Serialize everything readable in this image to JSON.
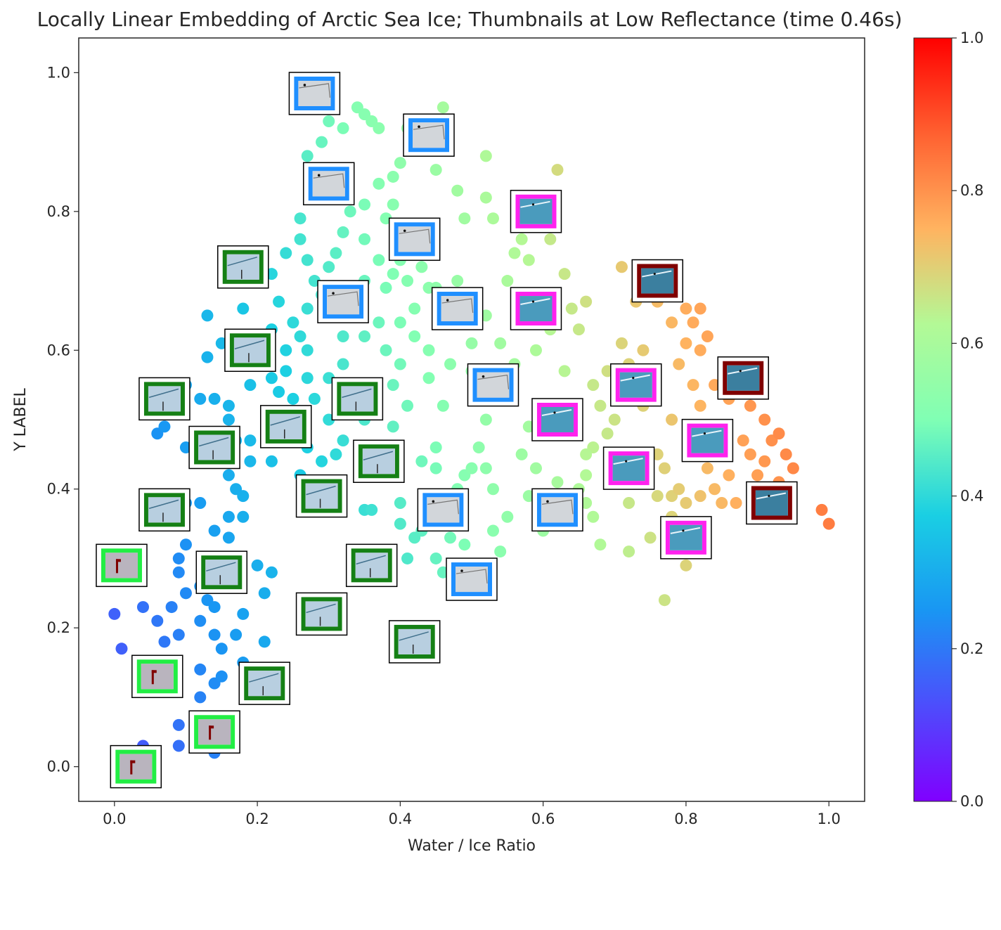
{
  "chart_data": {
    "type": "scatter",
    "title": "Locally Linear Embedding of Arctic Sea Ice; Thumbnails at Low Reflectance (time 0.46s)",
    "xlabel": "Water / Ice Ratio",
    "ylabel": "Y LABEL",
    "xlim": [
      -0.05,
      1.05
    ],
    "ylim": [
      -0.05,
      1.05
    ],
    "xticks": [
      0.0,
      0.2,
      0.4,
      0.6,
      0.8,
      1.0
    ],
    "xtick_labels": [
      "0.0",
      "0.2",
      "0.4",
      "0.6",
      "0.8",
      "1.0"
    ],
    "yticks": [
      0.0,
      0.2,
      0.4,
      0.6,
      0.8,
      1.0
    ],
    "ytick_labels": [
      "0.0",
      "0.2",
      "0.4",
      "0.6",
      "0.8",
      "1.0"
    ],
    "grid": false,
    "colormap": "rainbow",
    "colorbar": {
      "range": [
        0.0,
        1.0
      ],
      "ticks": [
        0.0,
        0.2,
        0.4,
        0.6,
        0.8,
        1.0
      ],
      "tick_labels": [
        "0.0",
        "0.2",
        "0.4",
        "0.6",
        "0.8",
        "1.0"
      ]
    },
    "points": [
      [
        0.03,
        0.0
      ],
      [
        0.04,
        0.03
      ],
      [
        0.09,
        0.06
      ],
      [
        0.09,
        0.03
      ],
      [
        0.14,
        0.02
      ],
      [
        0.14,
        0.05
      ],
      [
        0.12,
        0.14
      ],
      [
        0.12,
        0.1
      ],
      [
        0.14,
        0.12
      ],
      [
        0.15,
        0.13
      ],
      [
        0.19,
        0.1
      ],
      [
        0.21,
        0.11
      ],
      [
        0.0,
        0.22
      ],
      [
        0.01,
        0.17
      ],
      [
        0.05,
        0.15
      ],
      [
        0.07,
        0.18
      ],
      [
        0.09,
        0.19
      ],
      [
        0.04,
        0.23
      ],
      [
        0.06,
        0.21
      ],
      [
        0.08,
        0.23
      ],
      [
        0.12,
        0.21
      ],
      [
        0.14,
        0.19
      ],
      [
        0.15,
        0.17
      ],
      [
        0.17,
        0.19
      ],
      [
        0.18,
        0.22
      ],
      [
        0.18,
        0.15
      ],
      [
        0.21,
        0.18
      ],
      [
        0.1,
        0.25
      ],
      [
        0.12,
        0.26
      ],
      [
        0.13,
        0.24
      ],
      [
        0.14,
        0.23
      ],
      [
        0.15,
        0.27
      ],
      [
        0.17,
        0.26
      ],
      [
        0.2,
        0.29
      ],
      [
        0.21,
        0.25
      ],
      [
        0.22,
        0.28
      ],
      [
        0.09,
        0.28
      ],
      [
        0.09,
        0.3
      ],
      [
        0.1,
        0.32
      ],
      [
        0.14,
        0.34
      ],
      [
        0.16,
        0.33
      ],
      [
        0.18,
        0.36
      ],
      [
        0.17,
        0.4
      ],
      [
        0.18,
        0.39
      ],
      [
        0.16,
        0.36
      ],
      [
        0.1,
        0.38
      ],
      [
        0.12,
        0.38
      ],
      [
        0.16,
        0.42
      ],
      [
        0.19,
        0.44
      ],
      [
        0.12,
        0.48
      ],
      [
        0.16,
        0.5
      ],
      [
        0.17,
        0.47
      ],
      [
        0.19,
        0.47
      ],
      [
        0.14,
        0.53
      ],
      [
        0.16,
        0.52
      ],
      [
        0.19,
        0.55
      ],
      [
        0.2,
        0.58
      ],
      [
        0.06,
        0.48
      ],
      [
        0.07,
        0.49
      ],
      [
        0.1,
        0.46
      ],
      [
        0.13,
        0.59
      ],
      [
        0.15,
        0.61
      ],
      [
        0.18,
        0.62
      ],
      [
        0.18,
        0.66
      ],
      [
        0.13,
        0.65
      ],
      [
        0.1,
        0.55
      ],
      [
        0.12,
        0.53
      ],
      [
        0.22,
        0.44
      ],
      [
        0.26,
        0.42
      ],
      [
        0.27,
        0.46
      ],
      [
        0.23,
        0.51
      ],
      [
        0.25,
        0.53
      ],
      [
        0.27,
        0.56
      ],
      [
        0.27,
        0.6
      ],
      [
        0.28,
        0.53
      ],
      [
        0.3,
        0.56
      ],
      [
        0.32,
        0.58
      ],
      [
        0.33,
        0.52
      ],
      [
        0.35,
        0.5
      ],
      [
        0.36,
        0.54
      ],
      [
        0.39,
        0.55
      ],
      [
        0.39,
        0.49
      ],
      [
        0.41,
        0.52
      ],
      [
        0.4,
        0.58
      ],
      [
        0.38,
        0.6
      ],
      [
        0.35,
        0.62
      ],
      [
        0.31,
        0.45
      ],
      [
        0.35,
        0.44
      ],
      [
        0.35,
        0.37
      ],
      [
        0.36,
        0.37
      ],
      [
        0.4,
        0.38
      ],
      [
        0.4,
        0.35
      ],
      [
        0.41,
        0.3
      ],
      [
        0.43,
        0.34
      ],
      [
        0.45,
        0.3
      ],
      [
        0.46,
        0.28
      ],
      [
        0.47,
        0.33
      ],
      [
        0.45,
        0.46
      ],
      [
        0.45,
        0.43
      ],
      [
        0.48,
        0.4
      ],
      [
        0.49,
        0.42
      ],
      [
        0.5,
        0.43
      ],
      [
        0.51,
        0.46
      ],
      [
        0.52,
        0.43
      ],
      [
        0.53,
        0.4
      ],
      [
        0.53,
        0.34
      ],
      [
        0.54,
        0.31
      ],
      [
        0.49,
        0.32
      ],
      [
        0.52,
        0.5
      ],
      [
        0.53,
        0.55
      ],
      [
        0.5,
        0.57
      ],
      [
        0.46,
        0.52
      ],
      [
        0.44,
        0.56
      ],
      [
        0.42,
        0.62
      ],
      [
        0.44,
        0.6
      ],
      [
        0.47,
        0.58
      ],
      [
        0.3,
        0.65
      ],
      [
        0.32,
        0.62
      ],
      [
        0.34,
        0.66
      ],
      [
        0.37,
        0.64
      ],
      [
        0.4,
        0.64
      ],
      [
        0.42,
        0.66
      ],
      [
        0.26,
        0.62
      ],
      [
        0.24,
        0.6
      ],
      [
        0.22,
        0.56
      ],
      [
        0.22,
        0.63
      ],
      [
        0.23,
        0.67
      ],
      [
        0.22,
        0.71
      ],
      [
        0.24,
        0.74
      ],
      [
        0.26,
        0.76
      ],
      [
        0.27,
        0.73
      ],
      [
        0.28,
        0.7
      ],
      [
        0.3,
        0.72
      ],
      [
        0.31,
        0.74
      ],
      [
        0.32,
        0.77
      ],
      [
        0.35,
        0.76
      ],
      [
        0.37,
        0.73
      ],
      [
        0.39,
        0.71
      ],
      [
        0.4,
        0.73
      ],
      [
        0.41,
        0.7
      ],
      [
        0.43,
        0.72
      ],
      [
        0.44,
        0.69
      ],
      [
        0.47,
        0.66
      ],
      [
        0.48,
        0.7
      ],
      [
        0.26,
        0.79
      ],
      [
        0.28,
        0.82
      ],
      [
        0.31,
        0.84
      ],
      [
        0.33,
        0.8
      ],
      [
        0.35,
        0.81
      ],
      [
        0.37,
        0.84
      ],
      [
        0.39,
        0.81
      ],
      [
        0.38,
        0.79
      ],
      [
        0.27,
        0.88
      ],
      [
        0.29,
        0.9
      ],
      [
        0.3,
        0.93
      ],
      [
        0.32,
        0.92
      ],
      [
        0.34,
        0.95
      ],
      [
        0.35,
        0.94
      ],
      [
        0.36,
        0.93
      ],
      [
        0.37,
        0.92
      ],
      [
        0.39,
        0.85
      ],
      [
        0.4,
        0.87
      ],
      [
        0.41,
        0.92
      ],
      [
        0.43,
        0.89
      ],
      [
        0.45,
        0.86
      ],
      [
        0.46,
        0.95
      ],
      [
        0.48,
        0.83
      ],
      [
        0.49,
        0.79
      ],
      [
        0.52,
        0.88
      ],
      [
        0.56,
        0.74
      ],
      [
        0.57,
        0.76
      ],
      [
        0.58,
        0.73
      ],
      [
        0.55,
        0.7
      ],
      [
        0.6,
        0.66
      ],
      [
        0.61,
        0.76
      ],
      [
        0.63,
        0.71
      ],
      [
        0.65,
        0.63
      ],
      [
        0.66,
        0.67
      ],
      [
        0.63,
        0.57
      ],
      [
        0.67,
        0.55
      ],
      [
        0.68,
        0.52
      ],
      [
        0.69,
        0.57
      ],
      [
        0.71,
        0.72
      ],
      [
        0.73,
        0.67
      ],
      [
        0.71,
        0.61
      ],
      [
        0.72,
        0.58
      ],
      [
        0.7,
        0.5
      ],
      [
        0.7,
        0.44
      ],
      [
        0.67,
        0.46
      ],
      [
        0.66,
        0.42
      ],
      [
        0.65,
        0.4
      ],
      [
        0.62,
        0.41
      ],
      [
        0.59,
        0.43
      ],
      [
        0.57,
        0.45
      ],
      [
        0.58,
        0.49
      ],
      [
        0.58,
        0.39
      ],
      [
        0.61,
        0.37
      ],
      [
        0.64,
        0.39
      ],
      [
        0.66,
        0.38
      ],
      [
        0.67,
        0.36
      ],
      [
        0.72,
        0.38
      ],
      [
        0.74,
        0.42
      ],
      [
        0.76,
        0.45
      ],
      [
        0.77,
        0.43
      ],
      [
        0.78,
        0.39
      ],
      [
        0.79,
        0.4
      ],
      [
        0.76,
        0.39
      ],
      [
        0.78,
        0.36
      ],
      [
        0.8,
        0.29
      ],
      [
        0.77,
        0.24
      ],
      [
        0.8,
        0.38
      ],
      [
        0.82,
        0.39
      ],
      [
        0.83,
        0.43
      ],
      [
        0.84,
        0.4
      ],
      [
        0.85,
        0.38
      ],
      [
        0.86,
        0.42
      ],
      [
        0.87,
        0.38
      ],
      [
        0.88,
        0.47
      ],
      [
        0.89,
        0.45
      ],
      [
        0.9,
        0.42
      ],
      [
        0.91,
        0.44
      ],
      [
        0.92,
        0.47
      ],
      [
        0.93,
        0.41
      ],
      [
        0.94,
        0.45
      ],
      [
        0.95,
        0.43
      ],
      [
        0.99,
        0.37
      ],
      [
        1.0,
        0.35
      ],
      [
        0.93,
        0.48
      ],
      [
        0.91,
        0.5
      ],
      [
        0.89,
        0.52
      ],
      [
        0.86,
        0.53
      ],
      [
        0.84,
        0.55
      ],
      [
        0.82,
        0.52
      ],
      [
        0.81,
        0.55
      ],
      [
        0.79,
        0.58
      ],
      [
        0.8,
        0.61
      ],
      [
        0.82,
        0.6
      ],
      [
        0.83,
        0.62
      ],
      [
        0.81,
        0.64
      ],
      [
        0.8,
        0.66
      ],
      [
        0.82,
        0.66
      ],
      [
        0.78,
        0.64
      ],
      [
        0.76,
        0.67
      ],
      [
        0.77,
        0.69
      ],
      [
        0.74,
        0.6
      ],
      [
        0.75,
        0.57
      ],
      [
        0.78,
        0.5
      ],
      [
        0.62,
        0.86
      ],
      [
        0.52,
        0.82
      ],
      [
        0.53,
        0.79
      ],
      [
        0.5,
        0.61
      ],
      [
        0.48,
        0.64
      ],
      [
        0.45,
        0.69
      ],
      [
        0.43,
        0.75
      ],
      [
        0.38,
        0.69
      ],
      [
        0.35,
        0.7
      ],
      [
        0.33,
        0.68
      ],
      [
        0.31,
        0.68
      ],
      [
        0.29,
        0.68
      ],
      [
        0.27,
        0.66
      ],
      [
        0.25,
        0.64
      ],
      [
        0.24,
        0.57
      ],
      [
        0.23,
        0.54
      ],
      [
        0.26,
        0.49
      ],
      [
        0.3,
        0.5
      ],
      [
        0.32,
        0.47
      ],
      [
        0.29,
        0.44
      ],
      [
        0.43,
        0.44
      ],
      [
        0.45,
        0.38
      ],
      [
        0.42,
        0.33
      ],
      [
        0.55,
        0.36
      ],
      [
        0.6,
        0.34
      ],
      [
        0.63,
        0.35
      ],
      [
        0.68,
        0.32
      ],
      [
        0.72,
        0.31
      ],
      [
        0.75,
        0.33
      ],
      [
        0.66,
        0.45
      ],
      [
        0.69,
        0.48
      ],
      [
        0.74,
        0.52
      ],
      [
        0.55,
        0.53
      ],
      [
        0.56,
        0.58
      ],
      [
        0.59,
        0.6
      ],
      [
        0.61,
        0.63
      ],
      [
        0.64,
        0.66
      ],
      [
        0.57,
        0.64
      ],
      [
        0.54,
        0.61
      ],
      [
        0.52,
        0.65
      ]
    ],
    "point_colors": "colored by x value (rainbow colormap, 0.0 to 1.0)",
    "thumbnails": [
      {
        "x": 0.03,
        "y": 0.0,
        "group": "bright-green"
      },
      {
        "x": 0.06,
        "y": 0.13,
        "group": "bright-green"
      },
      {
        "x": 0.14,
        "y": 0.05,
        "group": "bright-green"
      },
      {
        "x": 0.01,
        "y": 0.29,
        "group": "bright-green"
      },
      {
        "x": 0.21,
        "y": 0.12,
        "group": "dark-green"
      },
      {
        "x": 0.07,
        "y": 0.37,
        "group": "dark-green"
      },
      {
        "x": 0.15,
        "y": 0.28,
        "group": "dark-green"
      },
      {
        "x": 0.14,
        "y": 0.46,
        "group": "dark-green"
      },
      {
        "x": 0.07,
        "y": 0.53,
        "group": "dark-green"
      },
      {
        "x": 0.19,
        "y": 0.6,
        "group": "dark-green"
      },
      {
        "x": 0.18,
        "y": 0.72,
        "group": "dark-green"
      },
      {
        "x": 0.24,
        "y": 0.49,
        "group": "dark-green"
      },
      {
        "x": 0.29,
        "y": 0.39,
        "group": "dark-green"
      },
      {
        "x": 0.29,
        "y": 0.22,
        "group": "dark-green"
      },
      {
        "x": 0.34,
        "y": 0.53,
        "group": "dark-green"
      },
      {
        "x": 0.37,
        "y": 0.44,
        "group": "dark-green"
      },
      {
        "x": 0.36,
        "y": 0.29,
        "group": "dark-green"
      },
      {
        "x": 0.42,
        "y": 0.18,
        "group": "dark-green"
      },
      {
        "x": 0.28,
        "y": 0.97,
        "group": "blue"
      },
      {
        "x": 0.3,
        "y": 0.84,
        "group": "blue"
      },
      {
        "x": 0.32,
        "y": 0.67,
        "group": "blue"
      },
      {
        "x": 0.44,
        "y": 0.91,
        "group": "blue"
      },
      {
        "x": 0.42,
        "y": 0.76,
        "group": "blue"
      },
      {
        "x": 0.48,
        "y": 0.66,
        "group": "blue"
      },
      {
        "x": 0.53,
        "y": 0.55,
        "group": "blue"
      },
      {
        "x": 0.46,
        "y": 0.37,
        "group": "blue"
      },
      {
        "x": 0.5,
        "y": 0.27,
        "group": "blue"
      },
      {
        "x": 0.62,
        "y": 0.37,
        "group": "blue"
      },
      {
        "x": 0.59,
        "y": 0.8,
        "group": "magenta"
      },
      {
        "x": 0.59,
        "y": 0.66,
        "group": "magenta"
      },
      {
        "x": 0.62,
        "y": 0.5,
        "group": "magenta"
      },
      {
        "x": 0.73,
        "y": 0.55,
        "group": "magenta"
      },
      {
        "x": 0.72,
        "y": 0.43,
        "group": "magenta"
      },
      {
        "x": 0.83,
        "y": 0.47,
        "group": "magenta"
      },
      {
        "x": 0.8,
        "y": 0.33,
        "group": "magenta"
      },
      {
        "x": 0.76,
        "y": 0.7,
        "group": "dark-red"
      },
      {
        "x": 0.88,
        "y": 0.56,
        "group": "dark-red"
      },
      {
        "x": 0.92,
        "y": 0.38,
        "group": "dark-red"
      }
    ],
    "thumbnail_frame_colors": {
      "bright-green": "#22ee44",
      "dark-green": "#158015",
      "blue": "#1f8fff",
      "magenta": "#ff22ee",
      "dark-red": "#800000"
    }
  }
}
